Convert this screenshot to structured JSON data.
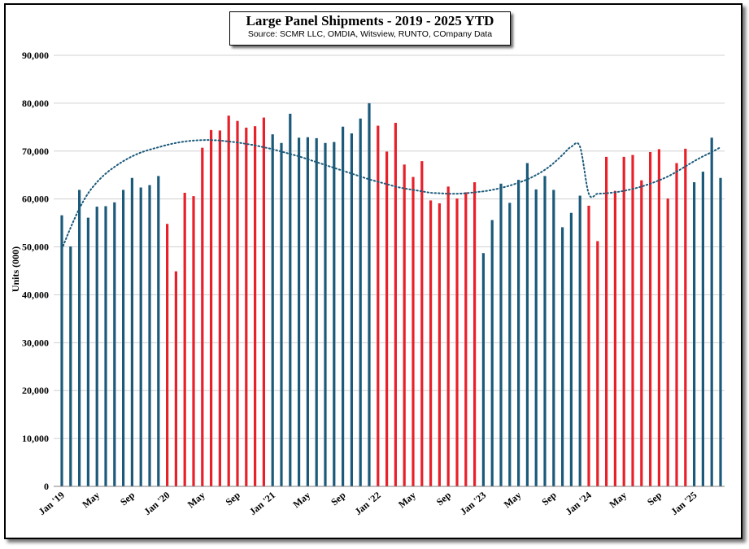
{
  "chart_data": {
    "type": "bar",
    "title": "Large Panel Shipments - 2019 - 2025 YTD",
    "subtitle": "Source: SCMR LLC, OMDIA, Witsview,  RUNTO, COmpany Data",
    "ylabel": "Units (000)",
    "xlabel": "",
    "ylim": [
      0,
      90000
    ],
    "yticks": [
      0,
      10000,
      20000,
      30000,
      40000,
      50000,
      60000,
      70000,
      80000,
      90000
    ],
    "ytick_labels": [
      "0",
      "10,000",
      "20,000",
      "30,000",
      "40,000",
      "50,000",
      "60,000",
      "70,000",
      "80,000",
      "90,000"
    ],
    "grid": true,
    "x_labels": [
      {
        "index": 0,
        "label": "Jan '19"
      },
      {
        "index": 4,
        "label": "May"
      },
      {
        "index": 8,
        "label": "Sep"
      },
      {
        "index": 12,
        "label": "Jan '20"
      },
      {
        "index": 16,
        "label": "May"
      },
      {
        "index": 20,
        "label": "Sep"
      },
      {
        "index": 24,
        "label": "Jan '21"
      },
      {
        "index": 28,
        "label": "May"
      },
      {
        "index": 32,
        "label": "Sep"
      },
      {
        "index": 36,
        "label": "Jan '22"
      },
      {
        "index": 40,
        "label": "May"
      },
      {
        "index": 44,
        "label": "Sep"
      },
      {
        "index": 48,
        "label": "Jan '23"
      },
      {
        "index": 52,
        "label": "May"
      },
      {
        "index": 56,
        "label": "Sep"
      },
      {
        "index": 60,
        "label": "Jan '24"
      },
      {
        "index": 64,
        "label": "May"
      },
      {
        "index": 68,
        "label": "Sep"
      },
      {
        "index": 72,
        "label": "Jan '25"
      }
    ],
    "series": [
      {
        "values": [
          56600,
          50100,
          61900,
          56100,
          58400,
          58500,
          59300,
          61900,
          64400,
          62400,
          62900,
          64800,
          54800,
          44900,
          61300,
          60600,
          70700,
          74400,
          74300,
          77400,
          76300,
          74900,
          75200,
          77000,
          73500,
          71700,
          77800,
          72800,
          72900,
          72700,
          71700,
          71900,
          75100,
          73700,
          76800,
          80000,
          75300,
          69900,
          75900,
          67200,
          64600,
          67900,
          59700,
          59100,
          62600,
          60100,
          61400,
          63500,
          48700,
          55600,
          63200,
          59200,
          64000,
          67500,
          62000,
          64800,
          61900,
          54100,
          57100,
          60700,
          58600,
          51200,
          68800,
          61700,
          68800,
          69200,
          63900,
          69800,
          70400,
          60100,
          67500,
          70500,
          63500,
          65700,
          72800,
          64400
        ],
        "colors": [
          "#1b5a7a",
          "#e8202a"
        ],
        "color_pattern": "year-alternating: 2019 blue, 2020 red, 2021 blue, 2022 red, 2023 blue, 2024 red, 2025 blue"
      },
      {
        "type": "trendline",
        "style": "dotted",
        "color": "#1b5a7a",
        "values": [
          49500,
          54000,
          58000,
          61200,
          63500,
          65300,
          66700,
          67900,
          68900,
          69700,
          70300,
          70800,
          71300,
          71700,
          72000,
          72200,
          72300,
          72300,
          72200,
          72000,
          71800,
          71500,
          71200,
          70800,
          70400,
          69900,
          69400,
          68900,
          68300,
          67700,
          67100,
          66500,
          65900,
          65300,
          64700,
          64100,
          63600,
          63100,
          62600,
          62200,
          61900,
          61600,
          61300,
          61200,
          61100,
          61100,
          61200,
          61400,
          61600,
          61900,
          62300,
          62800,
          63400,
          64100,
          65000,
          66100,
          67500,
          69200,
          70900,
          70900,
          61100,
          61100,
          61200,
          61400,
          61700,
          62100,
          62600,
          63200,
          63900,
          64700,
          65700,
          66800,
          67900,
          68900,
          69800,
          70800
        ]
      }
    ]
  }
}
